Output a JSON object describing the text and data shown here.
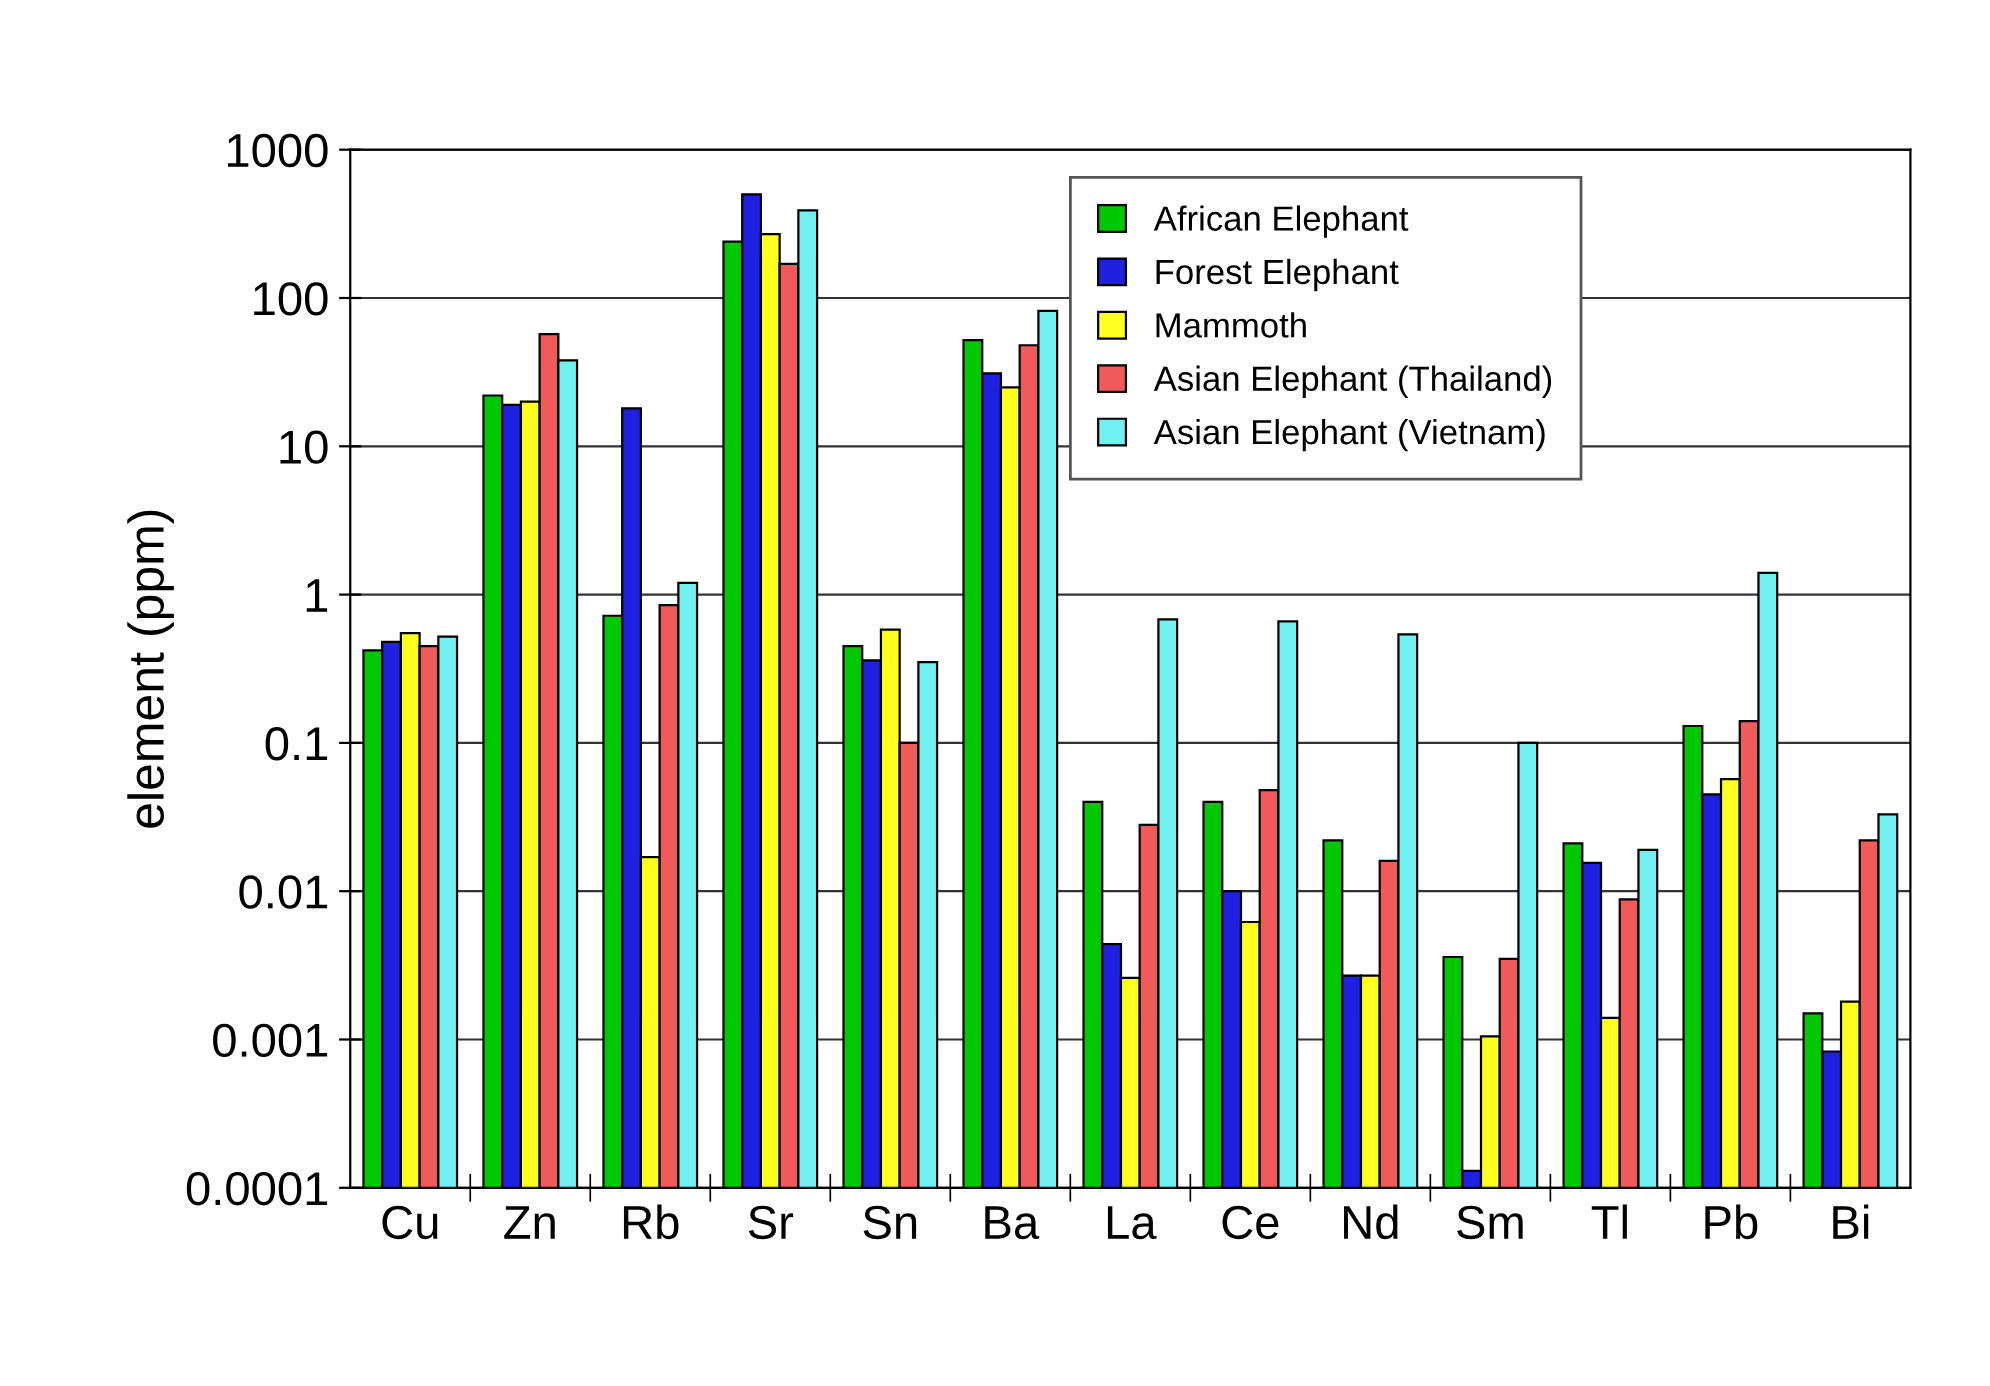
{
  "chart_data": {
    "type": "bar",
    "ylabel": "element (ppm)",
    "log": true,
    "grid": "y",
    "legend": "top right",
    "categories": [
      "Cu",
      "Zn",
      "Rb",
      "Sr",
      "Sn",
      "Ba",
      "La",
      "Ce",
      "Nd",
      "Sm",
      "Tl",
      "Pb",
      "Bi"
    ],
    "ylim": [
      0.0001,
      1000
    ],
    "yticks": [
      0.0001,
      0.001,
      0.01,
      0.1,
      1,
      10,
      100,
      1000
    ],
    "series": [
      {
        "name": "African Elephant",
        "color": "#00c800",
        "values": [
          0.42,
          22,
          0.72,
          240,
          0.45,
          52,
          0.04,
          0.04,
          0.022,
          0.0036,
          0.021,
          0.13,
          0.0015
        ]
      },
      {
        "name": "Forest Elephant",
        "color": "#2020e0",
        "values": [
          0.48,
          19,
          18,
          500,
          0.36,
          31,
          0.0044,
          0.01,
          0.0027,
          0.00013,
          0.0155,
          0.045,
          0.00083
        ]
      },
      {
        "name": "Mammoth",
        "color": "#ffff20",
        "values": [
          0.55,
          20,
          0.017,
          270,
          0.58,
          25,
          0.0026,
          0.0062,
          0.0027,
          0.00105,
          0.0014,
          0.057,
          0.0018
        ]
      },
      {
        "name": "Asian Elephant (Thailand)",
        "color": "#f05a5a",
        "values": [
          0.45,
          57,
          0.85,
          170,
          0.1,
          48,
          0.028,
          0.048,
          0.016,
          0.0035,
          0.0088,
          0.14,
          0.022
        ]
      },
      {
        "name": "Asian Elephant (Vietnam)",
        "color": "#70f0f0",
        "values": [
          0.52,
          38,
          1.2,
          390,
          0.35,
          82,
          0.68,
          0.66,
          0.54,
          0.1,
          0.019,
          1.4,
          0.033
        ]
      }
    ]
  }
}
